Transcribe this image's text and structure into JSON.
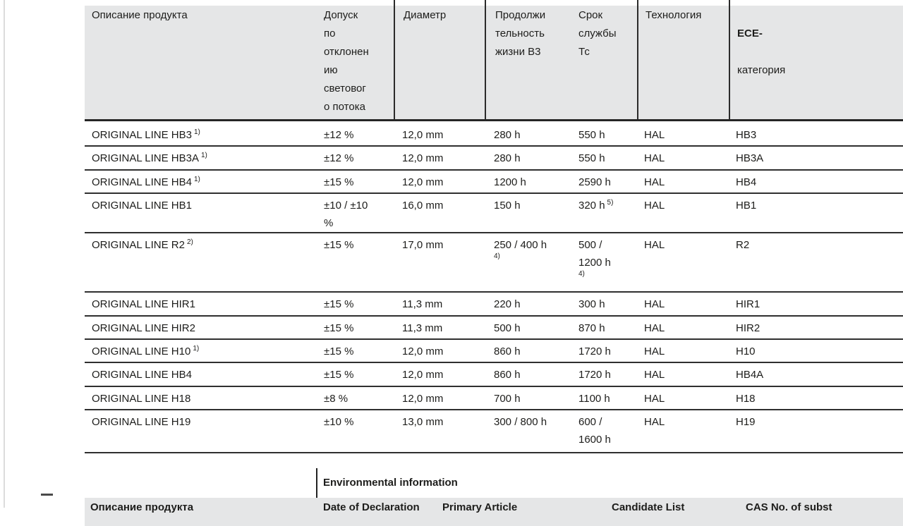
{
  "colors": {
    "header_background": "#e5e6e7",
    "row_border": "#2f2f2f",
    "text": "#1d1d1b",
    "page_edge_line": "#dcdcdc"
  },
  "main_table": {
    "headers": {
      "product": "Описание продукта",
      "tolerance": "Допуск\nпо\nотклонен\nию\nсветовог\nо потока",
      "diameter": "Диаметр",
      "lifetime_b3": "Продолжи\nтельность\nжизни B3",
      "lifetime_tc": "Срок\nслужбы\nТс",
      "technology": "Технология",
      "ece_line1": "ECE-",
      "ece_line2": "категория"
    },
    "rows": [
      {
        "cells": [
          {
            "text": "ORIGINAL LINE HB3",
            "sup": "1)"
          },
          {
            "text": "±12 %"
          },
          {
            "text": "12,0 mm"
          },
          {
            "text": "280 h"
          },
          {
            "text": "550 h"
          },
          {
            "text": "HAL"
          },
          {
            "text": "HB3"
          }
        ]
      },
      {
        "cells": [
          {
            "text": "ORIGINAL LINE HB3A",
            "sup": "1)"
          },
          {
            "text": "±12 %"
          },
          {
            "text": "12,0 mm"
          },
          {
            "text": "280 h"
          },
          {
            "text": "550 h"
          },
          {
            "text": "HAL"
          },
          {
            "text": "HB3A"
          }
        ]
      },
      {
        "cells": [
          {
            "text": "ORIGINAL LINE HB4",
            "sup": "1)"
          },
          {
            "text": "±15 %"
          },
          {
            "text": "12,0 mm"
          },
          {
            "text": "1200 h"
          },
          {
            "text": "2590 h"
          },
          {
            "text": "HAL"
          },
          {
            "text": "HB4"
          }
        ]
      },
      {
        "cells": [
          {
            "text": "ORIGINAL LINE HB1"
          },
          {
            "text": "±10 / ±10\n%"
          },
          {
            "text": "16,0 mm"
          },
          {
            "text": "150 h"
          },
          {
            "text": "320 h",
            "sup": "5)"
          },
          {
            "text": "HAL"
          },
          {
            "text": "HB1"
          }
        ]
      },
      {
        "cells": [
          {
            "text": "ORIGINAL LINE R2",
            "sup": "2)"
          },
          {
            "text": "±15 %"
          },
          {
            "text": "17,0 mm"
          },
          {
            "text": "250 / 400 h",
            "sup": "4)",
            "sup_below": true
          },
          {
            "text": "500 /\n1200 h",
            "sup": "4)",
            "sup_below": true
          },
          {
            "text": "HAL"
          },
          {
            "text": "R2"
          }
        ]
      },
      {
        "cells": [
          {
            "text": "ORIGINAL LINE HIR1"
          },
          {
            "text": "±15 %"
          },
          {
            "text": "11,3 mm"
          },
          {
            "text": "220 h"
          },
          {
            "text": "300 h"
          },
          {
            "text": "HAL"
          },
          {
            "text": "HIR1"
          }
        ]
      },
      {
        "cells": [
          {
            "text": "ORIGINAL LINE HIR2"
          },
          {
            "text": "±15 %"
          },
          {
            "text": "11,3 mm"
          },
          {
            "text": "500 h"
          },
          {
            "text": "870 h"
          },
          {
            "text": "HAL"
          },
          {
            "text": "HIR2"
          }
        ]
      },
      {
        "cells": [
          {
            "text": "ORIGINAL LINE H10",
            "sup": "1)"
          },
          {
            "text": "±15 %"
          },
          {
            "text": "12,0 mm"
          },
          {
            "text": "860 h"
          },
          {
            "text": "1720 h"
          },
          {
            "text": "HAL"
          },
          {
            "text": "H10"
          }
        ]
      },
      {
        "cells": [
          {
            "text": "ORIGINAL LINE HB4"
          },
          {
            "text": "±15 %"
          },
          {
            "text": "12,0 mm"
          },
          {
            "text": "860 h"
          },
          {
            "text": "1720 h"
          },
          {
            "text": "HAL"
          },
          {
            "text": "HB4A"
          }
        ]
      },
      {
        "cells": [
          {
            "text": "ORIGINAL LINE H18"
          },
          {
            "text": "±8 %"
          },
          {
            "text": "12,0 mm"
          },
          {
            "text": "700 h"
          },
          {
            "text": "1100 h"
          },
          {
            "text": "HAL"
          },
          {
            "text": "H18"
          }
        ]
      },
      {
        "cells": [
          {
            "text": "ORIGINAL LINE H19"
          },
          {
            "text": "±10 %"
          },
          {
            "text": "13,0 mm"
          },
          {
            "text": "300 / 800 h"
          },
          {
            "text": "600 /\n1600 h"
          },
          {
            "text": "HAL"
          },
          {
            "text": "H19"
          }
        ]
      }
    ]
  },
  "environmental_section": {
    "title": "Environmental information",
    "left_header": "Описание продукта",
    "col_headers": [
      "Date of Declaration",
      "Primary Article",
      "Candidate List",
      "CAS No. of subst"
    ]
  }
}
